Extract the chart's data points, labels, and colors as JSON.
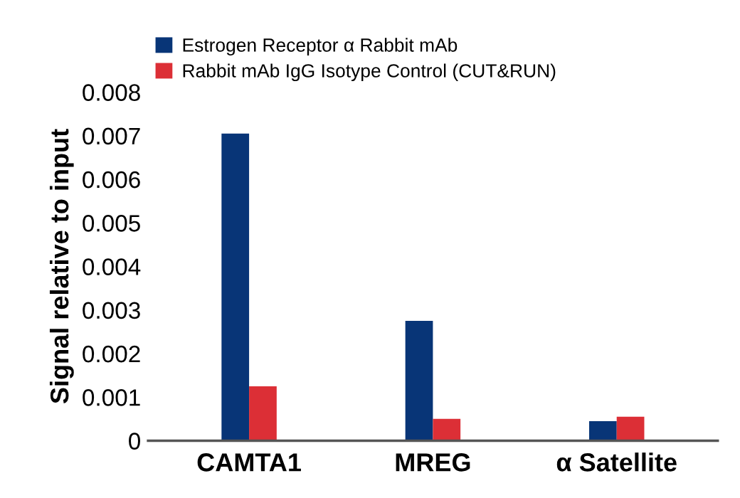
{
  "chart_data": {
    "type": "bar",
    "ylabel": "Signal relative to input",
    "categories": [
      "CAMTA1",
      "MREG",
      "α Satellite"
    ],
    "series": [
      {
        "name": "Estrogen Receptor α Rabbit mAb",
        "color": "#083577",
        "values": [
          0.00705,
          0.00275,
          0.00045
        ]
      },
      {
        "name": "Rabbit mAb IgG Isotype Control (CUT&RUN)",
        "color": "#dc2f36",
        "values": [
          0.00125,
          0.0005,
          0.00055
        ]
      }
    ],
    "ylim": [
      0,
      0.008
    ],
    "yticks": [
      0,
      0.001,
      0.002,
      0.003,
      0.004,
      0.005,
      0.006,
      0.007,
      0.008
    ],
    "grid": false,
    "legend": "top left"
  }
}
